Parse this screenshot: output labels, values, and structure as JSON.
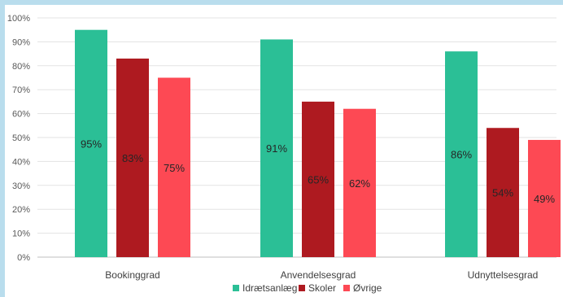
{
  "chart_data": {
    "type": "bar",
    "categories": [
      "Bookinggrad",
      "Anvendelsesgrad",
      "Udnyttelsesgrad"
    ],
    "series": [
      {
        "name": "Idrætsanlæg",
        "values": [
          95,
          91,
          86
        ],
        "color": "#2bbf96"
      },
      {
        "name": "Skoler",
        "values": [
          83,
          65,
          54
        ],
        "color": "#ae1a20"
      },
      {
        "name": "Øvrige",
        "values": [
          75,
          62,
          49
        ],
        "color": "#fd4954"
      }
    ],
    "data_labels": [
      [
        "95%",
        "83%",
        "75%"
      ],
      [
        "91%",
        "65%",
        "62%"
      ],
      [
        "86%",
        "54%",
        "49%"
      ]
    ],
    "yticks": [
      "0%",
      "10%",
      "20%",
      "30%",
      "40%",
      "50%",
      "60%",
      "70%",
      "80%",
      "90%",
      "100%"
    ],
    "ylim": [
      0,
      100
    ],
    "grid": true,
    "legend": "bottom-center"
  }
}
